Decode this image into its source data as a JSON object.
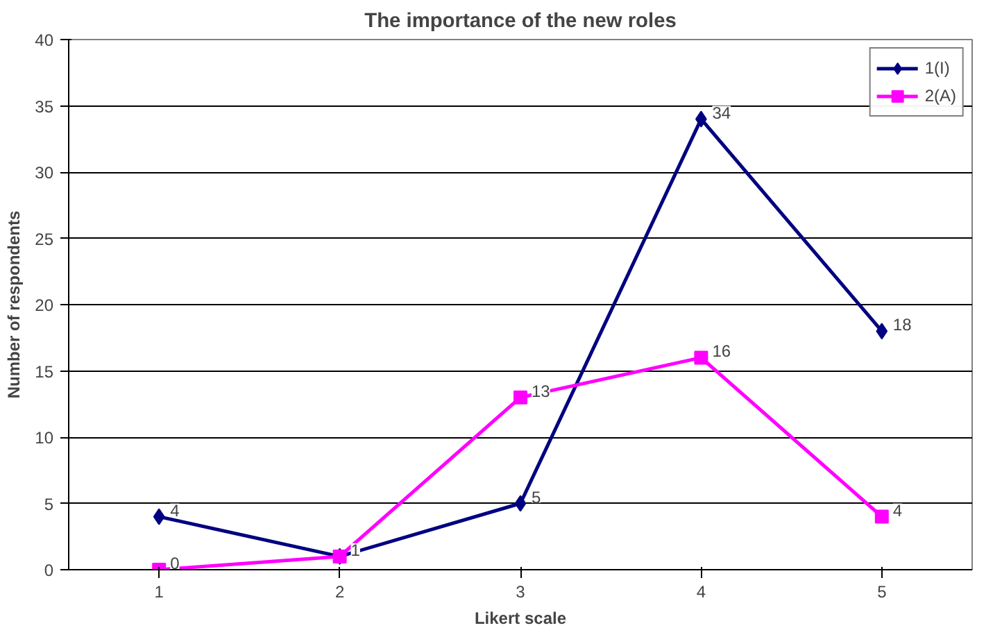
{
  "chart_data": {
    "type": "line",
    "title": "The importance of the new roles",
    "xlabel": "Likert scale",
    "ylabel": "Number of respondents",
    "categories": [
      "1",
      "2",
      "3",
      "4",
      "5"
    ],
    "series": [
      {
        "name": "1(I)",
        "color": "#000080",
        "marker": "diamond",
        "values": [
          4,
          1,
          5,
          34,
          18
        ],
        "value_labels": [
          "4",
          "1",
          "5",
          "34",
          "18"
        ]
      },
      {
        "name": "2(A)",
        "color": "#ff00ff",
        "marker": "square",
        "values": [
          0,
          1,
          13,
          16,
          4
        ],
        "value_labels": [
          "0",
          null,
          "13",
          "16",
          "4"
        ]
      }
    ],
    "ylim": [
      0,
      40
    ],
    "yticks": [
      0,
      5,
      10,
      15,
      20,
      25,
      30,
      35,
      40
    ],
    "grid": "y",
    "legend": "top right",
    "line_style": "solid"
  }
}
